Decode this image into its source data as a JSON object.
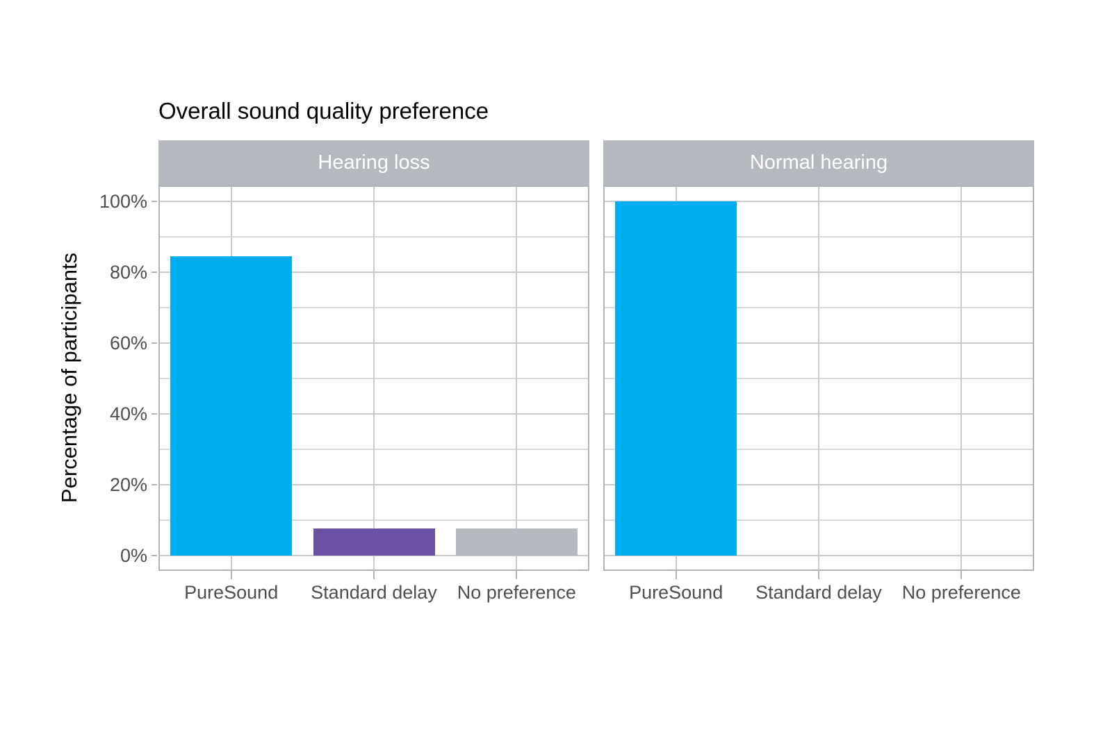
{
  "chart_data": {
    "type": "bar",
    "title": "Overall sound quality preference",
    "ylabel": "Percentage of participants",
    "xlabel": "",
    "categories": [
      "PureSound",
      "Standard delay",
      "No preference"
    ],
    "facets": [
      {
        "label": "Hearing loss",
        "values": [
          84.6,
          7.7,
          7.7
        ]
      },
      {
        "label": "Normal hearing",
        "values": [
          100,
          0,
          0
        ]
      }
    ],
    "y_ticks": [
      {
        "value": 0,
        "label": "0%"
      },
      {
        "value": 20,
        "label": "20%"
      },
      {
        "value": 40,
        "label": "40%"
      },
      {
        "value": 60,
        "label": "60%"
      },
      {
        "value": 80,
        "label": "80%"
      },
      {
        "value": 100,
        "label": "100%"
      }
    ],
    "ylim": [
      0,
      100
    ],
    "y_unit": "%",
    "legend": "none",
    "grid": {
      "horizontal_step_pct": 10,
      "major_every_pct": 20,
      "vertical": "category-centers"
    },
    "bar_colors": {
      "PureSound": "#00adee",
      "Standard delay": "#6b51a3",
      "No preference": "#b5b9c0"
    },
    "colors": {
      "background": "#ffffff",
      "title_text": "#000000",
      "axis_text": "#4f4f4f",
      "strip_bg": "#b5b9bf",
      "strip_text": "#ffffff",
      "panel_border": "#afb4ba",
      "grid_major": "#c7cbd1",
      "grid_minor": "#d6d9dd",
      "tick_mark": "#afb4ba"
    }
  }
}
